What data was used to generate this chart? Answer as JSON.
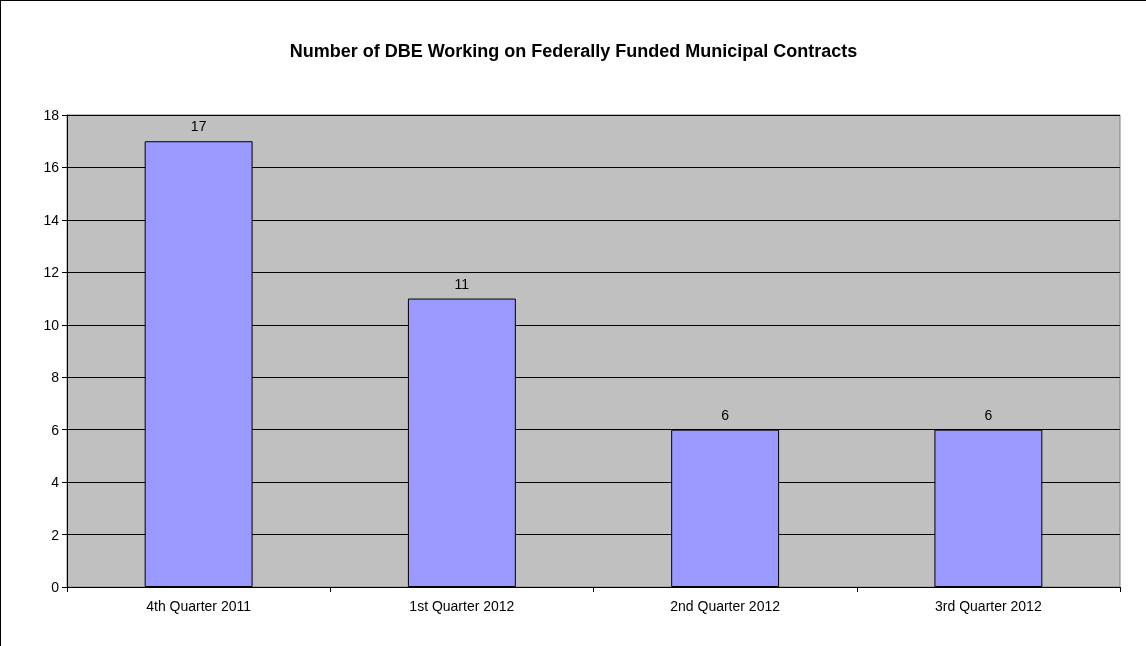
{
  "chart_data": {
    "type": "bar",
    "title": "Number of DBE Working on Federally Funded Municipal Contracts",
    "categories": [
      "4th Quarter 2011",
      "1st Quarter 2012",
      "2nd Quarter 2012",
      "3rd Quarter 2012"
    ],
    "values": [
      17,
      11,
      6,
      6
    ],
    "color": "#9999ff",
    "ylim": [
      0,
      18
    ],
    "yticks": [
      0,
      2,
      4,
      6,
      8,
      10,
      12,
      14,
      16,
      18
    ],
    "grid": "y",
    "data_labels": true
  }
}
